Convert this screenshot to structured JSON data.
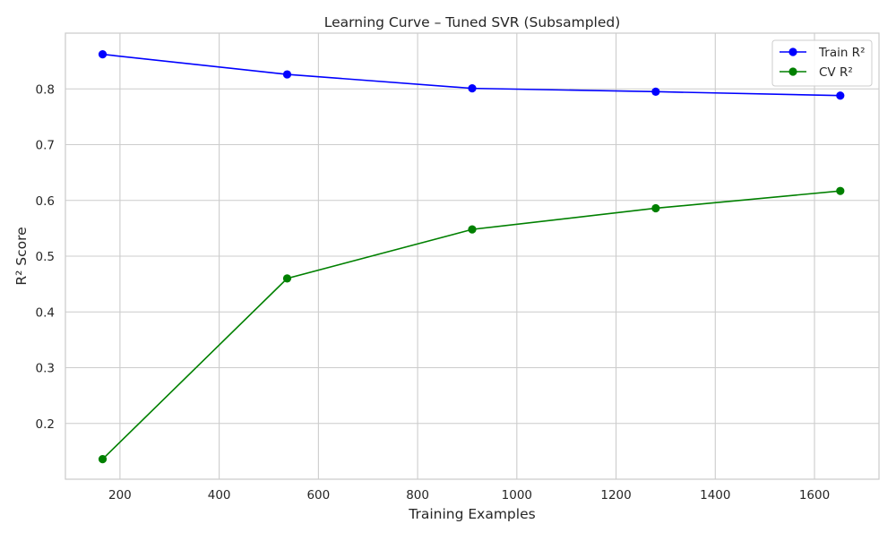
{
  "chart_data": {
    "type": "line",
    "title": "Learning Curve – Tuned SVR (Subsampled)",
    "xlabel": "Training Examples",
    "ylabel": "R² Score",
    "xlim": [
      90,
      1730
    ],
    "ylim": [
      0.1,
      0.9
    ],
    "xticks": [
      200,
      400,
      600,
      800,
      1000,
      1200,
      1400,
      1600
    ],
    "yticks": [
      0.2,
      0.3,
      0.4,
      0.5,
      0.6,
      0.7,
      0.8
    ],
    "x": [
      165,
      537,
      910,
      1280,
      1652
    ],
    "series": [
      {
        "name": "Train R²",
        "color": "#0000ff",
        "marker": "circle",
        "values": [
          0.862,
          0.826,
          0.801,
          0.795,
          0.788
        ]
      },
      {
        "name": "CV R²",
        "color": "#008000",
        "marker": "circle",
        "values": [
          0.136,
          0.46,
          0.548,
          0.586,
          0.617
        ]
      }
    ],
    "grid": true,
    "legend_position": "top-right",
    "colors": {
      "grid": "#cccccc",
      "spine": "#cccccc",
      "text": "#262626",
      "background": "#ffffff"
    }
  }
}
